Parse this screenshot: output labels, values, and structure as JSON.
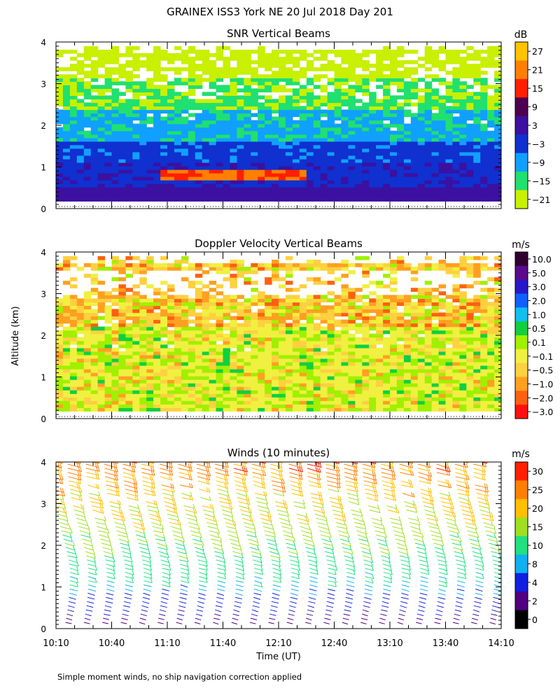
{
  "figure": {
    "title": "GRAINEX ISS3 York NE  20 Jul 2018 Day 201",
    "ylabel": "Altitude (km)",
    "xlabel": "Time (UT)",
    "footnote": "Simple moment winds, no ship navigation correction applied"
  },
  "chart_data": [
    {
      "type": "heatmap",
      "title": "SNR Vertical Beams",
      "ylabel": "Altitude (km)",
      "xlabel": "Time (UT)",
      "x_range_hours_ut": [
        10.1667,
        14.1667
      ],
      "ylim": [
        0,
        4
      ],
      "y_ticks": [
        "0",
        "1",
        "2",
        "3",
        "4"
      ],
      "x_ticks": [
        "10:10",
        "10:40",
        "11:10",
        "11:40",
        "12:10",
        "12:40",
        "13:10",
        "13:40",
        "14:10"
      ],
      "colorbar": {
        "unit": "dB",
        "labels": [
          "27",
          "21",
          "15",
          "9",
          "3",
          "−3",
          "−9",
          "−15",
          "−21"
        ],
        "colors": [
          "#ffc300",
          "#ff8000",
          "#ff2000",
          "#500050",
          "#3c10a0",
          "#1030d0",
          "#10a0ff",
          "#20e070",
          "#c8f000"
        ]
      },
      "features": [
        {
          "description_value": "strong echo layer",
          "altitude_km": 0.8,
          "time_start": "11:00",
          "time_end": "12:15",
          "snr_db": 20
        },
        {
          "description_value": "low altitude band",
          "altitude_km_range": [
            0.2,
            1.5
          ],
          "snr_db": 3
        },
        {
          "description_value": "mid band",
          "altitude_km_range": [
            1.5,
            2.5
          ],
          "snr_db": -9
        },
        {
          "description_value": "upper band",
          "altitude_km_range": [
            2.5,
            3.9
          ],
          "snr_db": -18
        }
      ]
    },
    {
      "type": "heatmap",
      "title": "Doppler Velocity Vertical Beams",
      "ylabel": "Altitude (km)",
      "xlabel": "Time (UT)",
      "x_range_hours_ut": [
        10.1667,
        14.1667
      ],
      "ylim": [
        0,
        4
      ],
      "y_ticks": [
        "0",
        "1",
        "2",
        "3",
        "4"
      ],
      "x_ticks": [
        "10:10",
        "10:40",
        "11:10",
        "11:40",
        "12:10",
        "12:40",
        "13:10",
        "13:40",
        "14:10"
      ],
      "colorbar": {
        "unit": "m/s",
        "labels": [
          "10.0",
          "5.0",
          "3.0",
          "2.0",
          "1.0",
          "0.5",
          "0.1",
          "−0.1",
          "−0.5",
          "−1.0",
          "−2.0",
          "−3.0"
        ],
        "colors": [
          "#300030",
          "#5a0a8a",
          "#2818c8",
          "#1060ff",
          "#10c0f0",
          "#10d040",
          "#a0f000",
          "#f0f040",
          "#ffd040",
          "#ffa020",
          "#ff6010",
          "#ff1010"
        ]
      },
      "features": [
        {
          "description_value": "near-zero velocity region",
          "altitude_km_range": [
            0.2,
            2.3
          ],
          "velocity_ms": -0.1
        },
        {
          "description_value": "downdraft region",
          "altitude_km_range": [
            2.3,
            3.8
          ],
          "velocity_ms": -0.5
        }
      ]
    },
    {
      "type": "scatter",
      "title": "Winds (10 minutes)",
      "ylabel": "Altitude (km)",
      "xlabel": "Time (UT)",
      "x_range_hours_ut": [
        10.1667,
        14.1667
      ],
      "ylim": [
        0,
        4
      ],
      "y_ticks": [
        "0",
        "1",
        "2",
        "3",
        "4"
      ],
      "x_ticks": [
        "10:10",
        "10:40",
        "11:10",
        "11:40",
        "12:10",
        "12:40",
        "13:10",
        "13:40",
        "14:10"
      ],
      "colorbar": {
        "unit": "m/s",
        "labels": [
          "30",
          "25",
          "20",
          "15",
          "10",
          "8",
          "4",
          "2",
          "0"
        ],
        "colors": [
          "#ff2000",
          "#ff8000",
          "#ffc000",
          "#a0e020",
          "#20e080",
          "#10b0f0",
          "#1020e0",
          "#500080",
          "#000000"
        ]
      },
      "wind_profile_ms": [
        {
          "altitude_km": 0.2,
          "speed": 3
        },
        {
          "altitude_km": 0.5,
          "speed": 5
        },
        {
          "altitude_km": 1.0,
          "speed": 9
        },
        {
          "altitude_km": 1.5,
          "speed": 12
        },
        {
          "altitude_km": 2.0,
          "speed": 15
        },
        {
          "altitude_km": 2.5,
          "speed": 18
        },
        {
          "altitude_km": 3.0,
          "speed": 21
        },
        {
          "altitude_km": 3.5,
          "speed": 24
        },
        {
          "altitude_km": 4.0,
          "speed": 28
        }
      ]
    }
  ]
}
